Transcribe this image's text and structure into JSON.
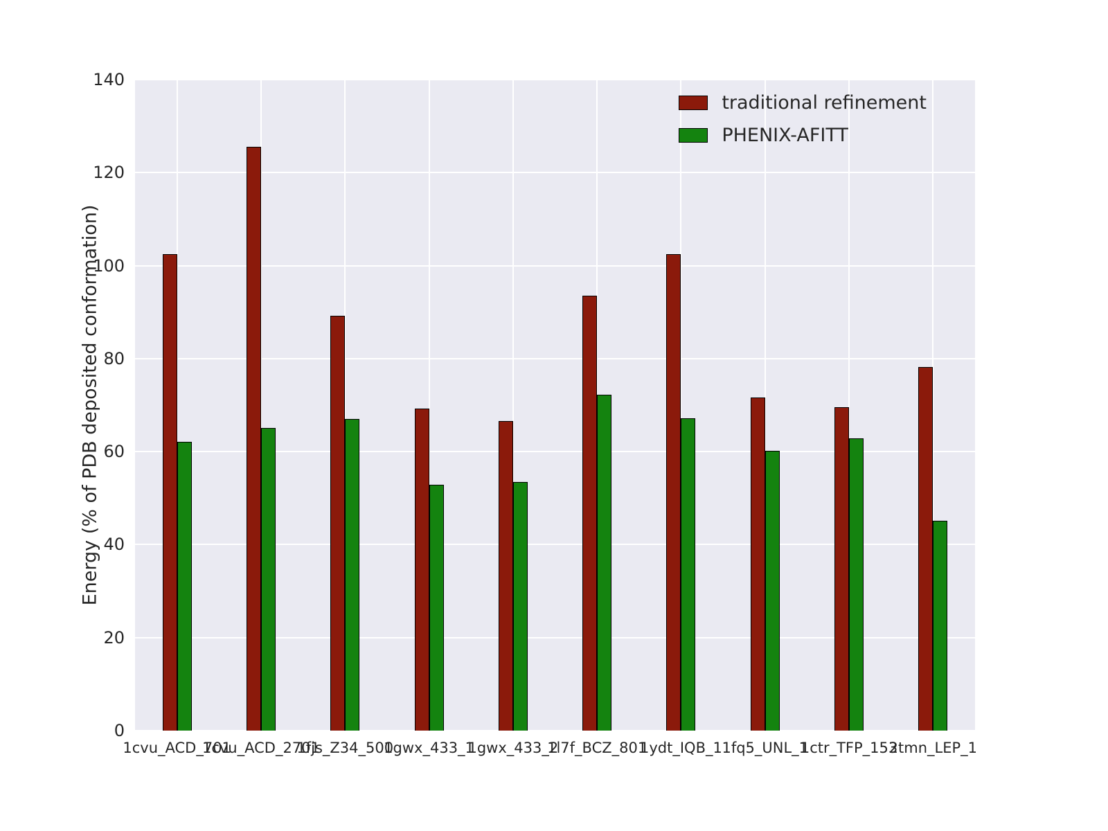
{
  "chart_data": {
    "type": "bar",
    "title": "",
    "xlabel": "",
    "ylabel": "Energy (% of PDB deposited conformation)",
    "ylim": [
      0,
      140
    ],
    "yticks": [
      0,
      20,
      40,
      60,
      80,
      100,
      120,
      140
    ],
    "grid": true,
    "legend_position": "upper right",
    "plot_background": "#eaeaf2",
    "grid_color": "#ffffff",
    "categories": [
      "1cvu_ACD_701",
      "1cvu_ACD_2701",
      "1fjs_Z34_500",
      "1gwx_433_1",
      "1gwx_433_2",
      "1l7f_BCZ_801",
      "1ydt_IQB_1",
      "1fq5_UNL_1",
      "1ctr_TFP_153",
      "2tmn_LEP_1"
    ],
    "series": [
      {
        "name": "traditional refinement",
        "color": "#8b1a0b",
        "values": [
          102.4,
          125.5,
          89.2,
          69.2,
          66.6,
          93.5,
          102.4,
          71.6,
          69.6,
          78.2
        ]
      },
      {
        "name": "PHENIX-AFITT",
        "color": "#14830f",
        "values": [
          62.1,
          65.1,
          67.0,
          52.9,
          53.5,
          72.3,
          67.2,
          60.1,
          62.9,
          45.1
        ]
      }
    ]
  }
}
